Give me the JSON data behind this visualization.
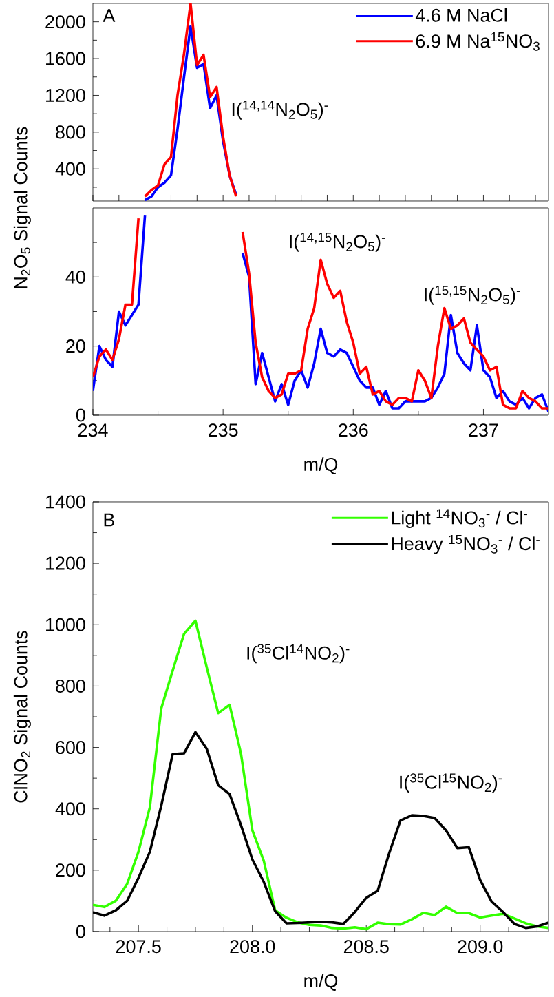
{
  "chart_data": [
    {
      "type": "line",
      "ylabel": null,
      "xlim": [
        234,
        237.5
      ],
      "ylim": [
        50,
        2200
      ],
      "tick_labels": "y",
      "legend": "top right",
      "yticks": [
        400,
        800,
        1200,
        1600,
        2000,
        {
          "value": 200,
          "label": null
        },
        {
          "value": 600,
          "label": null
        },
        {
          "value": 1000,
          "label": null
        },
        {
          "value": 1400,
          "label": null
        },
        {
          "value": 1800,
          "label": null
        }
      ],
      "x": [
        234.4,
        234.45,
        234.5,
        234.55,
        234.6,
        234.65,
        234.7,
        234.75,
        234.8,
        234.85,
        234.9,
        234.95,
        235.0,
        235.05,
        235.1
      ],
      "series": [
        {
          "name": "4.6 M NaCl",
          "color": "#0000ff",
          "values": [
            60,
            100,
            200,
            250,
            330,
            830,
            1400,
            1950,
            1500,
            1540,
            1060,
            1200,
            700,
            330,
            120
          ]
        },
        {
          "name": "6.9 M Na$^{15}$NO$_{3}$",
          "color": "#ff0000",
          "values": [
            100,
            170,
            220,
            450,
            530,
            1200,
            1650,
            2200,
            1530,
            1640,
            1180,
            1290,
            750,
            330,
            100
          ]
        }
      ],
      "annotations": [
        "A",
        "I($^{14,14}$N$_{2}$O$_{5}$)$^{-}$"
      ]
    },
    {
      "type": "line",
      "xlabel": "m/Q",
      "ylabel": "N$_{2}$O$_{5}$ Signal Counts",
      "xlim": [
        234,
        237.5
      ],
      "ylim": [
        0,
        60
      ],
      "xticks": [
        234,
        235,
        236,
        237,
        {
          "value": 234.5,
          "label": null
        },
        {
          "value": 235.5,
          "label": null
        },
        {
          "value": 236.5,
          "label": null
        }
      ],
      "yticks": [
        0,
        20,
        40,
        {
          "value": 10,
          "label": null
        },
        {
          "value": 30,
          "label": null
        },
        {
          "value": 50,
          "label": null
        }
      ],
      "x": [
        234.0,
        234.05,
        234.1,
        234.15,
        234.2,
        234.25,
        234.3,
        234.35,
        234.4,
        234.45,
        234.5,
        234.55,
        234.6,
        234.65,
        234.7,
        234.75,
        234.8,
        234.85,
        234.9,
        234.95,
        235.0,
        235.05,
        235.1,
        235.15,
        235.2,
        235.25,
        235.3,
        235.35,
        235.4,
        235.45,
        235.5,
        235.55,
        235.6,
        235.65,
        235.7,
        235.75,
        235.8,
        235.85,
        235.9,
        235.95,
        236.0,
        236.05,
        236.1,
        236.15,
        236.2,
        236.25,
        236.3,
        236.35,
        236.4,
        236.45,
        236.5,
        236.55,
        236.6,
        236.65,
        236.7,
        236.75,
        236.8,
        236.85,
        236.9,
        236.95,
        237.0,
        237.05,
        237.1,
        237.15,
        237.2,
        237.25,
        237.3,
        237.35,
        237.4,
        237.45,
        237.5
      ],
      "series": [
        {
          "color": "#0000ff",
          "values": [
            7,
            20,
            16,
            14,
            30,
            26,
            29,
            32,
            58,
            null,
            null,
            null,
            null,
            null,
            null,
            null,
            null,
            null,
            null,
            null,
            null,
            null,
            null,
            47,
            40,
            9,
            18,
            11,
            4,
            9,
            3,
            10,
            13,
            8,
            15,
            25,
            18,
            17,
            19,
            18,
            14,
            10,
            8,
            8,
            3,
            7,
            2,
            2,
            4,
            4,
            4,
            4,
            5,
            8,
            12,
            29,
            18,
            15,
            13,
            26,
            13,
            11,
            5,
            7,
            4,
            3,
            5,
            2,
            5,
            6,
            1
          ]
        },
        {
          "color": "#ff0000",
          "values": [
            11,
            17,
            19,
            16,
            22,
            32,
            32,
            57,
            null,
            null,
            null,
            null,
            null,
            null,
            null,
            null,
            null,
            null,
            null,
            null,
            null,
            null,
            null,
            53,
            41,
            21,
            11,
            7,
            5,
            6,
            12,
            12,
            13,
            25,
            31,
            45,
            38,
            34,
            36,
            27,
            21,
            12,
            14,
            6,
            7,
            4,
            3,
            5,
            5,
            4,
            13,
            10,
            5,
            20,
            31,
            25,
            26,
            28,
            21,
            19,
            17,
            13,
            14,
            3,
            2,
            2,
            7,
            5,
            4,
            2,
            2
          ]
        }
      ],
      "annotations": [
        "I($^{14,15}$N$_{2}$O$_{5}$)$^{-}$",
        "I($^{15,15}$N$_{2}$O$_{5}$)$^{-}$"
      ]
    },
    {
      "type": "line",
      "xlabel": "m/Q",
      "ylabel": "ClNO$_{2}$ Signal Counts",
      "xlim": [
        207.3,
        209.3
      ],
      "ylim": [
        0,
        1400
      ],
      "legend": "top right",
      "xticks": [
        207.5,
        {
          "value": 208,
          "label": "208.0"
        },
        208.5,
        {
          "value": 209,
          "label": "209.0"
        },
        {
          "value": 207.375,
          "label": null
        },
        {
          "value": 207.625,
          "label": null
        },
        {
          "value": 207.75,
          "label": null
        },
        {
          "value": 207.875,
          "label": null
        },
        {
          "value": 208.125,
          "label": null
        },
        {
          "value": 208.25,
          "label": null
        },
        {
          "value": 208.375,
          "label": null
        },
        {
          "value": 208.625,
          "label": null
        },
        {
          "value": 208.75,
          "label": null
        },
        {
          "value": 208.875,
          "label": null
        },
        {
          "value": 209.125,
          "label": null
        },
        {
          "value": 209.25,
          "label": null
        }
      ],
      "yticks": [
        0,
        200,
        400,
        600,
        800,
        1000,
        1200,
        1400,
        {
          "value": 100,
          "label": null
        },
        {
          "value": 300,
          "label": null
        },
        {
          "value": 500,
          "label": null
        },
        {
          "value": 700,
          "label": null
        },
        {
          "value": 900,
          "label": null
        },
        {
          "value": 1100,
          "label": null
        },
        {
          "value": 1300,
          "label": null
        }
      ],
      "x": [
        207.3,
        207.35,
        207.4,
        207.45,
        207.5,
        207.55,
        207.6,
        207.65,
        207.7,
        207.75,
        207.8,
        207.85,
        207.9,
        207.95,
        208.0,
        208.05,
        208.1,
        208.15,
        208.2,
        208.25,
        208.3,
        208.35,
        208.4,
        208.45,
        208.5,
        208.55,
        208.6,
        208.65,
        208.7,
        208.75,
        208.8,
        208.85,
        208.9,
        208.95,
        209.0,
        209.05,
        209.1,
        209.15,
        209.2,
        209.25,
        209.3
      ],
      "series": [
        {
          "name": "Light $^{14}$NO$_{3}$$^{-}$ / Cl$^{-}$",
          "color": "#33ff00",
          "values": [
            87,
            80,
            100,
            155,
            260,
            405,
            727,
            850,
            970,
            1013,
            860,
            712,
            739,
            580,
            330,
            231,
            69,
            45,
            30,
            22,
            20,
            12,
            10,
            14,
            8,
            29,
            24,
            23,
            40,
            61,
            54,
            81,
            60,
            60,
            46,
            52,
            58,
            43,
            27,
            17,
            12
          ]
        },
        {
          "name": "Heavy $^{15}$NO$_{3}$$^{-}$ / Cl$^{-}$",
          "color": "#000000",
          "values": [
            63,
            52,
            69,
            100,
            175,
            260,
            410,
            578,
            581,
            650,
            595,
            477,
            448,
            347,
            235,
            162,
            66,
            27,
            28,
            30,
            32,
            30,
            25,
            64,
            110,
            133,
            254,
            362,
            379,
            377,
            370,
            330,
            272,
            275,
            168,
            98,
            64,
            25,
            12,
            17,
            29
          ]
        }
      ],
      "annotations": [
        "B",
        "I($^{35}$Cl$^{14}$NO$_{2}$)$^{-}$",
        "I($^{35}$Cl$^{15}$NO$_{2}$)$^{-}$"
      ]
    }
  ]
}
